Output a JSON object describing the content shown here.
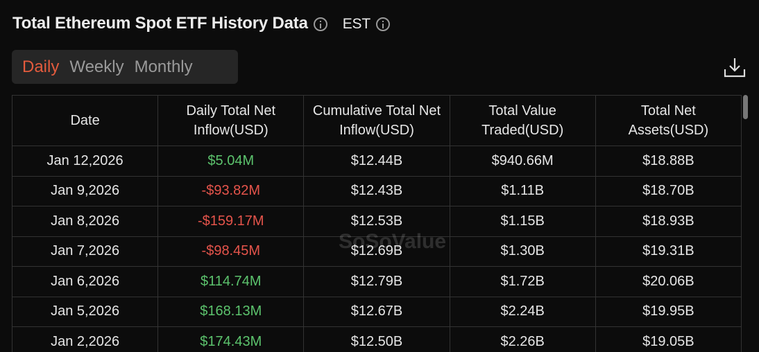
{
  "header": {
    "title": "Total Ethereum Spot ETF History Data",
    "timezone": "EST"
  },
  "tabs": {
    "items": [
      "Daily",
      "Weekly",
      "Monthly"
    ],
    "active": 0
  },
  "watermark": "SoSoValue",
  "colors": {
    "positive": "#5cc36d",
    "negative": "#e5544b"
  },
  "table": {
    "headers": [
      "Date",
      "Daily Total Net Inflow(USD)",
      "Cumulative Total Net Inflow(USD)",
      "Total Value Traded(USD)",
      "Total Net Assets(USD)"
    ],
    "rows": [
      [
        "Jan 12,2026",
        "$5.04M",
        "$12.44B",
        "$940.66M",
        "$18.88B"
      ],
      [
        "Jan 9,2026",
        "-$93.82M",
        "$12.43B",
        "$1.11B",
        "$18.70B"
      ],
      [
        "Jan 8,2026",
        "-$159.17M",
        "$12.53B",
        "$1.15B",
        "$18.93B"
      ],
      [
        "Jan 7,2026",
        "-$98.45M",
        "$12.69B",
        "$1.30B",
        "$19.31B"
      ],
      [
        "Jan 6,2026",
        "$114.74M",
        "$12.79B",
        "$1.72B",
        "$20.06B"
      ],
      [
        "Jan 5,2026",
        "$168.13M",
        "$12.67B",
        "$2.24B",
        "$19.95B"
      ],
      [
        "Jan 2,2026",
        "$174.43M",
        "$12.50B",
        "$2.26B",
        "$19.05B"
      ]
    ]
  }
}
